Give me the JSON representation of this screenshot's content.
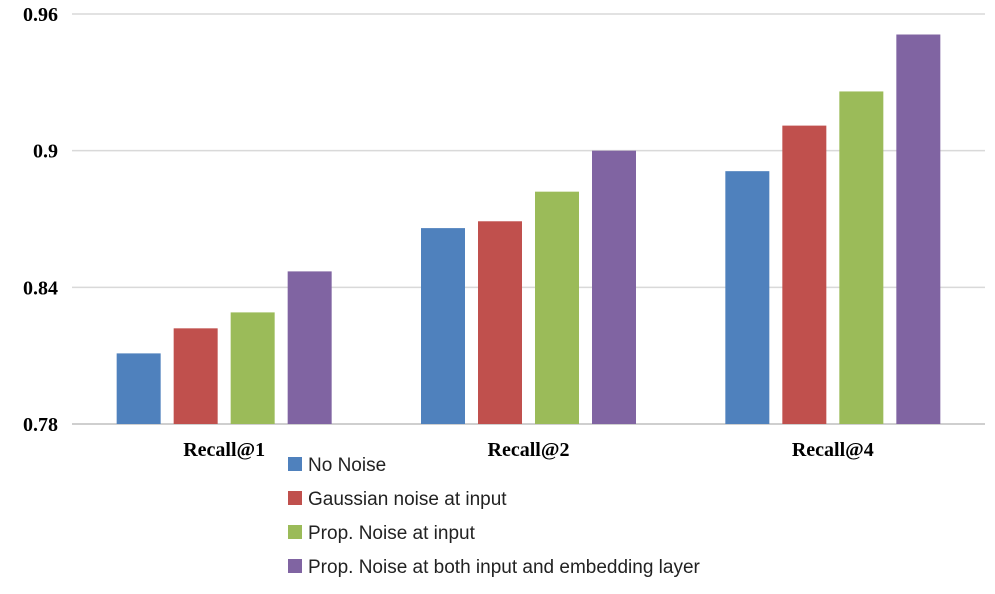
{
  "chart_data": {
    "type": "bar",
    "categories": [
      "Recall@1",
      "Recall@2",
      "Recall@4"
    ],
    "series": [
      {
        "name": "No Noise",
        "values": [
          0.811,
          0.866,
          0.891
        ],
        "color": "#4f81bd"
      },
      {
        "name": "Gaussian noise at input",
        "values": [
          0.822,
          0.869,
          0.911
        ],
        "color": "#c0504d"
      },
      {
        "name": "Prop. Noise at input",
        "values": [
          0.829,
          0.882,
          0.926
        ],
        "color": "#9bbb59"
      },
      {
        "name": "Prop. Noise at both input and embedding layer",
        "values": [
          0.847,
          0.9,
          0.951
        ],
        "color": "#8064a2"
      }
    ],
    "yticks": [
      "0.78",
      "0.84",
      "0.9",
      "0.96"
    ],
    "ylim": [
      0.78,
      0.96
    ],
    "grid": true,
    "legend_position": "bottom"
  }
}
